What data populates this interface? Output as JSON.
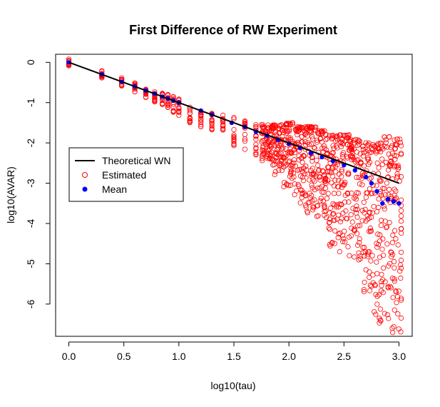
{
  "chart_data": {
    "type": "scatter",
    "title": "First Difference of RW Experiment",
    "xlabel": "log10(tau)",
    "ylabel": "log10(AVAR)",
    "xlim": [
      -0.12,
      3.12
    ],
    "ylim": [
      -6.8,
      0.2
    ],
    "x_ticks": [
      0.0,
      0.5,
      1.0,
      1.5,
      2.0,
      2.5,
      3.0
    ],
    "x_tick_labels": [
      "0.0",
      "0.5",
      "1.0",
      "1.5",
      "2.0",
      "2.5",
      "3.0"
    ],
    "y_ticks": [
      0,
      -1,
      -2,
      -3,
      -4,
      -5,
      -6
    ],
    "y_tick_labels": [
      "0",
      "-1",
      "-2",
      "-3",
      "-4",
      "-5",
      "-6"
    ],
    "grid": false,
    "legend_position": "left",
    "colors": {
      "theoretical": "#000000",
      "estimated": "#ff0000",
      "mean": "#0000ff"
    },
    "series": [
      {
        "name": "Theoretical WN",
        "kind": "line",
        "color": "#000000",
        "x": [
          0.0,
          3.0
        ],
        "y": [
          0.0,
          -3.0
        ]
      },
      {
        "name": "Estimated",
        "kind": "scatter-open",
        "color": "#ff0000",
        "x": [
          0.0,
          0.3,
          0.48,
          0.6,
          0.7,
          0.78,
          0.85,
          0.9,
          0.95,
          1.0,
          1.1,
          1.2,
          1.3,
          1.4,
          1.5,
          1.6,
          1.7,
          1.8,
          1.9,
          2.0,
          2.1,
          2.2,
          2.3,
          2.4,
          2.5,
          2.6,
          2.7,
          2.8,
          2.9,
          3.0
        ],
        "y_min": [
          -0.1,
          -0.4,
          -0.6,
          -0.75,
          -0.9,
          -1.0,
          -1.05,
          -1.15,
          -1.25,
          -1.35,
          -1.5,
          -1.6,
          -1.7,
          -1.8,
          -2.1,
          -2.2,
          -2.3,
          -2.45,
          -2.8,
          -3.1,
          -3.5,
          -3.8,
          -4.0,
          -4.6,
          -4.8,
          -5.0,
          -5.8,
          -6.5,
          -6.8,
          -6.8
        ],
        "y_max": [
          0.08,
          -0.2,
          -0.35,
          -0.5,
          -0.6,
          -0.7,
          -0.75,
          -0.8,
          -0.85,
          -0.9,
          -1.1,
          -1.15,
          -1.2,
          -1.3,
          -1.35,
          -1.45,
          -1.5,
          -1.55,
          -1.55,
          -1.5,
          -1.6,
          -1.6,
          -1.7,
          -1.8,
          -1.8,
          -1.9,
          -2.0,
          -2.0,
          -1.85,
          -1.9
        ]
      },
      {
        "name": "Mean",
        "kind": "scatter-filled",
        "color": "#0000ff",
        "x": [
          0.0,
          0.3,
          0.48,
          0.6,
          0.7,
          0.78,
          0.85,
          0.9,
          0.95,
          1.0,
          1.2,
          1.3,
          1.48,
          1.6,
          1.7,
          1.8,
          1.9,
          2.0,
          2.1,
          2.2,
          2.3,
          2.4,
          2.5,
          2.6,
          2.7,
          2.75,
          2.8,
          2.85,
          2.9,
          2.95,
          3.0
        ],
        "y": [
          0.0,
          -0.3,
          -0.48,
          -0.6,
          -0.7,
          -0.78,
          -0.85,
          -0.9,
          -0.95,
          -1.0,
          -1.2,
          -1.3,
          -1.5,
          -1.6,
          -1.72,
          -1.82,
          -1.92,
          -2.02,
          -2.12,
          -2.25,
          -2.35,
          -2.45,
          -2.55,
          -2.68,
          -2.85,
          -3.0,
          -3.2,
          -3.5,
          -3.4,
          -3.45,
          -3.5
        ]
      }
    ],
    "legend": [
      {
        "label": "Theoretical WN",
        "symbol": "line"
      },
      {
        "label": "Estimated",
        "symbol": "open-circle"
      },
      {
        "label": "Mean",
        "symbol": "filled-circle"
      }
    ]
  }
}
